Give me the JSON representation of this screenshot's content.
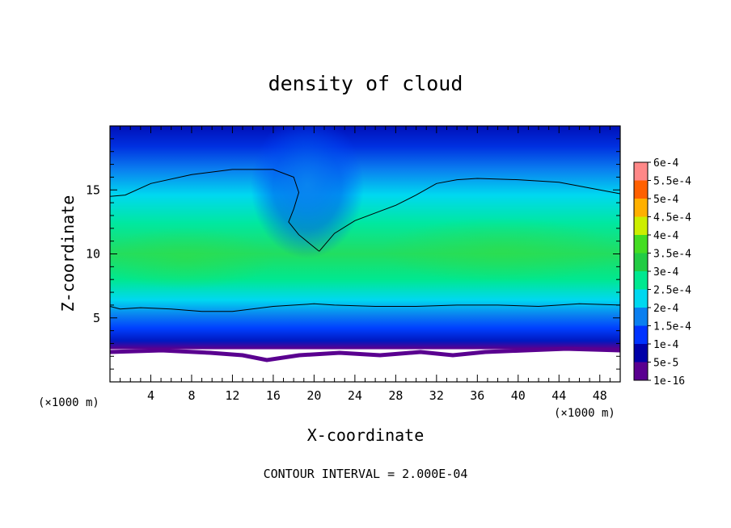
{
  "chart_data": {
    "type": "heatmap",
    "title": "density of cloud",
    "xlabel": "X-coordinate",
    "ylabel": "Z-coordinate",
    "x_unit": "(×1000 m)",
    "y_unit": "(×1000 m)",
    "xlim": [
      0,
      50
    ],
    "ylim": [
      0,
      20
    ],
    "x_ticks": [
      4,
      8,
      12,
      16,
      20,
      24,
      28,
      32,
      36,
      40,
      44,
      48
    ],
    "y_ticks": [
      5,
      10,
      15
    ],
    "colorbar": {
      "labels": [
        "6e-4",
        "5.5e-4",
        "5e-4",
        "4.5e-4",
        "4e-4",
        "3.5e-4",
        "3e-4",
        "2.5e-4",
        "2e-4",
        "1.5e-4",
        "1e-4",
        "5e-5",
        "1e-16"
      ],
      "colors": [
        "#5a0090",
        "#0000a8",
        "#0033ff",
        "#0a7ff0",
        "#00d8f0",
        "#00e890",
        "#22cc44",
        "#44dd22",
        "#ccee00",
        "#ffb000",
        "#ff6000",
        "#ff1010",
        "#ff8888"
      ]
    },
    "contour_interval": "CONTOUR INTERVAL = 2.000E-04",
    "contour_lines": [
      {
        "level": "2.000E-04",
        "x": [
          0,
          1,
          3,
          6,
          9,
          12,
          16,
          20,
          22,
          26,
          30,
          34,
          38,
          42,
          46,
          50
        ],
        "z": [
          5.9,
          5.7,
          5.8,
          5.7,
          5.5,
          5.5,
          5.9,
          6.1,
          6.0,
          5.9,
          5.9,
          6.0,
          6.0,
          5.9,
          6.1,
          6.0
        ]
      },
      {
        "level": "2.000E-04",
        "x": [
          0,
          1.5,
          4,
          8,
          12,
          16,
          18,
          18.5,
          18,
          17.5,
          18.5,
          20.5
        ],
        "z": [
          14.5,
          14.6,
          15.5,
          16.2,
          16.6,
          16.6,
          16.0,
          14.8,
          13.5,
          12.5,
          11.5,
          10.2
        ]
      },
      {
        "level": "2.000E-04",
        "x": [
          20.5,
          22,
          24,
          26,
          28,
          30,
          32,
          34,
          36,
          40,
          44,
          48,
          50
        ],
        "z": [
          10.2,
          11.6,
          12.6,
          13.2,
          13.8,
          14.6,
          15.5,
          15.8,
          15.9,
          15.8,
          15.6,
          15.0,
          14.7
        ]
      }
    ]
  },
  "colors": {
    "deep_blue": "#0000a8",
    "blue": "#0033ff",
    "mid_blue": "#0a7ff0",
    "cyan": "#00d8f0",
    "cyan_green": "#00e890",
    "green": "#22cc44",
    "purple": "#5a0090"
  }
}
